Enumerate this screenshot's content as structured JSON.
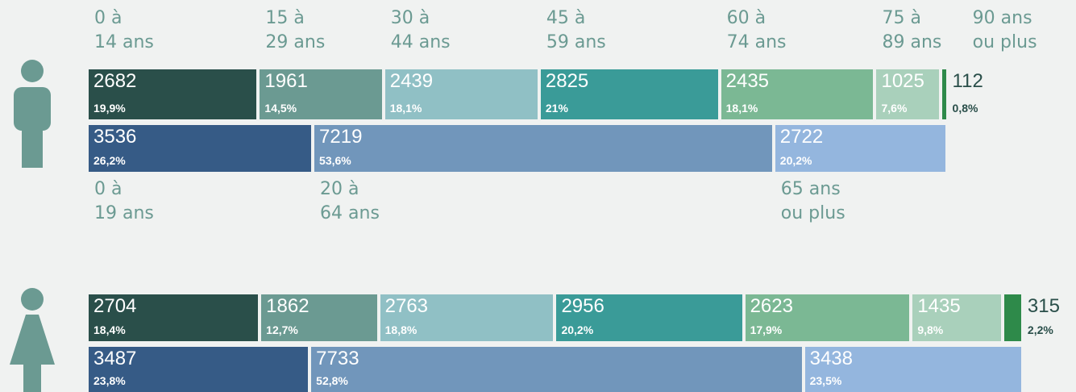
{
  "chart_data": [
    {
      "type": "stacked-bar",
      "categories": [
        "0 à\n14 ans",
        "15 à\n29 ans",
        "30 à\n44 ans",
        "45 à\n59 ans",
        "60 à\n74 ans",
        "75 à\n89 ans",
        "90 ans\nou plus"
      ],
      "values": [
        2682,
        1961,
        2439,
        2825,
        2435,
        1025,
        112
      ],
      "shares": [
        19.9,
        14.5,
        18.1,
        21,
        18.1,
        7.6,
        0.8
      ],
      "share_labels": [
        "19,9%",
        "14,5%",
        "18,1%",
        "21%",
        "18,1%",
        "7,6%",
        "0,8%"
      ],
      "colors": [
        "#2a4f4a",
        "#6b9a92",
        "#90c0c5",
        "#3a9b98",
        "#7bb894",
        "#a9d0bb",
        "#2e8a4a"
      ]
    },
    {
      "type": "stacked-bar",
      "categories": [
        "0 à\n19 ans",
        "20 à\n64 ans",
        "65 ans\nou plus"
      ],
      "values": [
        3536,
        7219,
        2722
      ],
      "shares": [
        26.2,
        53.6,
        20.2
      ],
      "share_labels": [
        "26,2%",
        "53,6%",
        "20,2%"
      ],
      "colors": [
        "#365b86",
        "#7196bb",
        "#94b6de"
      ]
    },
    {
      "type": "stacked-bar",
      "values": [
        2704,
        1862,
        2763,
        2956,
        2623,
        1435,
        315
      ],
      "shares": [
        18.4,
        12.7,
        18.8,
        20.2,
        17.9,
        9.8,
        2.2
      ],
      "share_labels": [
        "18,4%",
        "12,7%",
        "18,8%",
        "20,2%",
        "17,9%",
        "9,8%",
        "2,2%"
      ],
      "colors": [
        "#2a4f4a",
        "#6b9a92",
        "#90c0c5",
        "#3a9b98",
        "#7bb894",
        "#a9d0bb",
        "#2e8a4a"
      ]
    },
    {
      "type": "stacked-bar",
      "values": [
        3487,
        7733,
        3438
      ],
      "shares": [
        23.8,
        52.8,
        23.5
      ],
      "share_labels": [
        "23,8%",
        "52,8%",
        "23,5%"
      ],
      "colors": [
        "#365b86",
        "#7196bb",
        "#94b6de"
      ]
    }
  ]
}
